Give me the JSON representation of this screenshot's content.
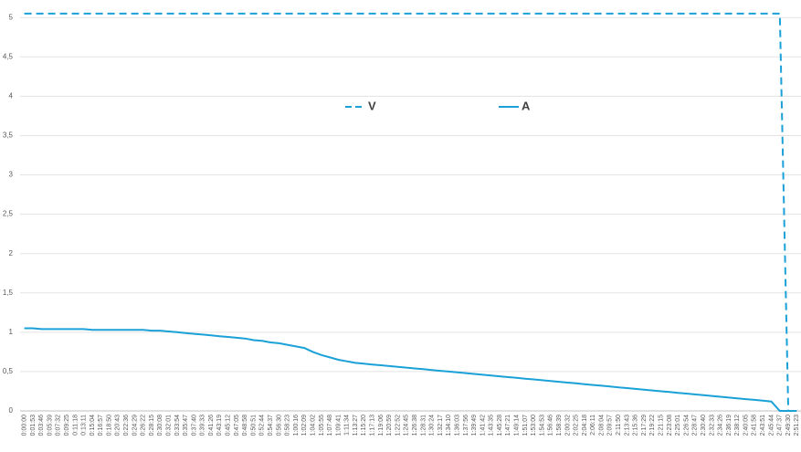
{
  "chart_data": {
    "type": "line",
    "categories": [
      "0:00:00",
      "0:01:53",
      "0:03:46",
      "0:05:39",
      "0:07:32",
      "0:09:25",
      "0:11:18",
      "0:13:11",
      "0:15:04",
      "0:16:57",
      "0:18:50",
      "0:20:43",
      "0:22:36",
      "0:24:29",
      "0:26:22",
      "0:28:15",
      "0:30:08",
      "0:32:01",
      "0:33:54",
      "0:35:47",
      "0:37:40",
      "0:39:33",
      "0:41:26",
      "0:43:19",
      "0:45:12",
      "0:47:05",
      "0:48:58",
      "0:50:51",
      "0:52:44",
      "0:54:37",
      "0:56:30",
      "0:58:23",
      "1:00:16",
      "1:02:09",
      "1:04:02",
      "1:05:55",
      "1:07:48",
      "1:09:41",
      "1:11:34",
      "1:13:27",
      "1:15:20",
      "1:17:13",
      "1:19:06",
      "1:20:59",
      "1:22:52",
      "1:24:45",
      "1:26:38",
      "1:28:31",
      "1:30:24",
      "1:32:17",
      "1:34:10",
      "1:36:03",
      "1:37:56",
      "1:39:49",
      "1:41:42",
      "1:43:35",
      "1:45:28",
      "1:47:21",
      "1:49:14",
      "1:51:07",
      "1:53:00",
      "1:54:53",
      "1:56:46",
      "1:58:39",
      "2:00:32",
      "2:02:25",
      "2:04:18",
      "2:06:11",
      "2:08:04",
      "2:09:57",
      "2:11:50",
      "2:13:43",
      "2:15:36",
      "2:17:29",
      "2:19:22",
      "2:21:15",
      "2:23:08",
      "2:25:01",
      "2:26:54",
      "2:28:47",
      "2:30:40",
      "2:32:33",
      "2:34:26",
      "2:36:19",
      "2:38:12",
      "2:40:05",
      "2:41:58",
      "2:43:51",
      "2:45:44",
      "2:47:37",
      "2:49:30",
      "2:51:23"
    ],
    "series": [
      {
        "name": "V",
        "color": "#1ba1d8",
        "dashed": true,
        "values": [
          5.05,
          5.05,
          5.05,
          5.05,
          5.05,
          5.05,
          5.05,
          5.05,
          5.05,
          5.05,
          5.05,
          5.05,
          5.05,
          5.05,
          5.05,
          5.05,
          5.05,
          5.05,
          5.05,
          5.05,
          5.05,
          5.05,
          5.05,
          5.05,
          5.05,
          5.05,
          5.05,
          5.05,
          5.05,
          5.05,
          5.05,
          5.05,
          5.05,
          5.05,
          5.05,
          5.05,
          5.05,
          5.05,
          5.05,
          5.05,
          5.05,
          5.05,
          5.05,
          5.05,
          5.05,
          5.05,
          5.05,
          5.05,
          5.05,
          5.05,
          5.05,
          5.05,
          5.05,
          5.05,
          5.05,
          5.05,
          5.05,
          5.05,
          5.05,
          5.05,
          5.05,
          5.05,
          5.05,
          5.05,
          5.05,
          5.05,
          5.05,
          5.05,
          5.05,
          5.05,
          5.05,
          5.05,
          5.05,
          5.05,
          5.05,
          5.05,
          5.05,
          5.05,
          5.05,
          5.05,
          5.05,
          5.05,
          5.05,
          5.05,
          5.05,
          5.05,
          5.05,
          5.05,
          5.05,
          5.05,
          0,
          0
        ]
      },
      {
        "name": "A",
        "color": "#1ba1d8",
        "dashed": false,
        "values": [
          1.05,
          1.05,
          1.04,
          1.04,
          1.04,
          1.04,
          1.04,
          1.04,
          1.03,
          1.03,
          1.03,
          1.03,
          1.03,
          1.03,
          1.03,
          1.02,
          1.02,
          1.01,
          1.0,
          0.99,
          0.98,
          0.97,
          0.96,
          0.95,
          0.94,
          0.93,
          0.92,
          0.9,
          0.89,
          0.87,
          0.86,
          0.84,
          0.82,
          0.8,
          0.75,
          0.71,
          0.68,
          0.65,
          0.63,
          0.61,
          0.6,
          0.59,
          0.58,
          0.57,
          0.56,
          0.55,
          0.54,
          0.53,
          0.52,
          0.51,
          0.5,
          0.49,
          0.48,
          0.47,
          0.46,
          0.45,
          0.44,
          0.43,
          0.42,
          0.41,
          0.4,
          0.39,
          0.38,
          0.37,
          0.36,
          0.35,
          0.34,
          0.33,
          0.32,
          0.31,
          0.3,
          0.29,
          0.28,
          0.27,
          0.26,
          0.25,
          0.24,
          0.23,
          0.22,
          0.21,
          0.2,
          0.19,
          0.18,
          0.17,
          0.16,
          0.15,
          0.14,
          0.13,
          0.12,
          0,
          0,
          0
        ]
      }
    ],
    "ylim": [
      0,
      5.2
    ],
    "yticks": [
      0,
      {
        "value": 0.5,
        "label": "0,5"
      },
      1,
      {
        "value": 1.5,
        "label": "1,5"
      },
      2,
      {
        "value": 2.5,
        "label": "2,5"
      },
      3,
      {
        "value": 3.5,
        "label": "3,5"
      },
      4,
      {
        "value": 4.5,
        "label": "4,5"
      },
      5
    ],
    "grid": true
  }
}
